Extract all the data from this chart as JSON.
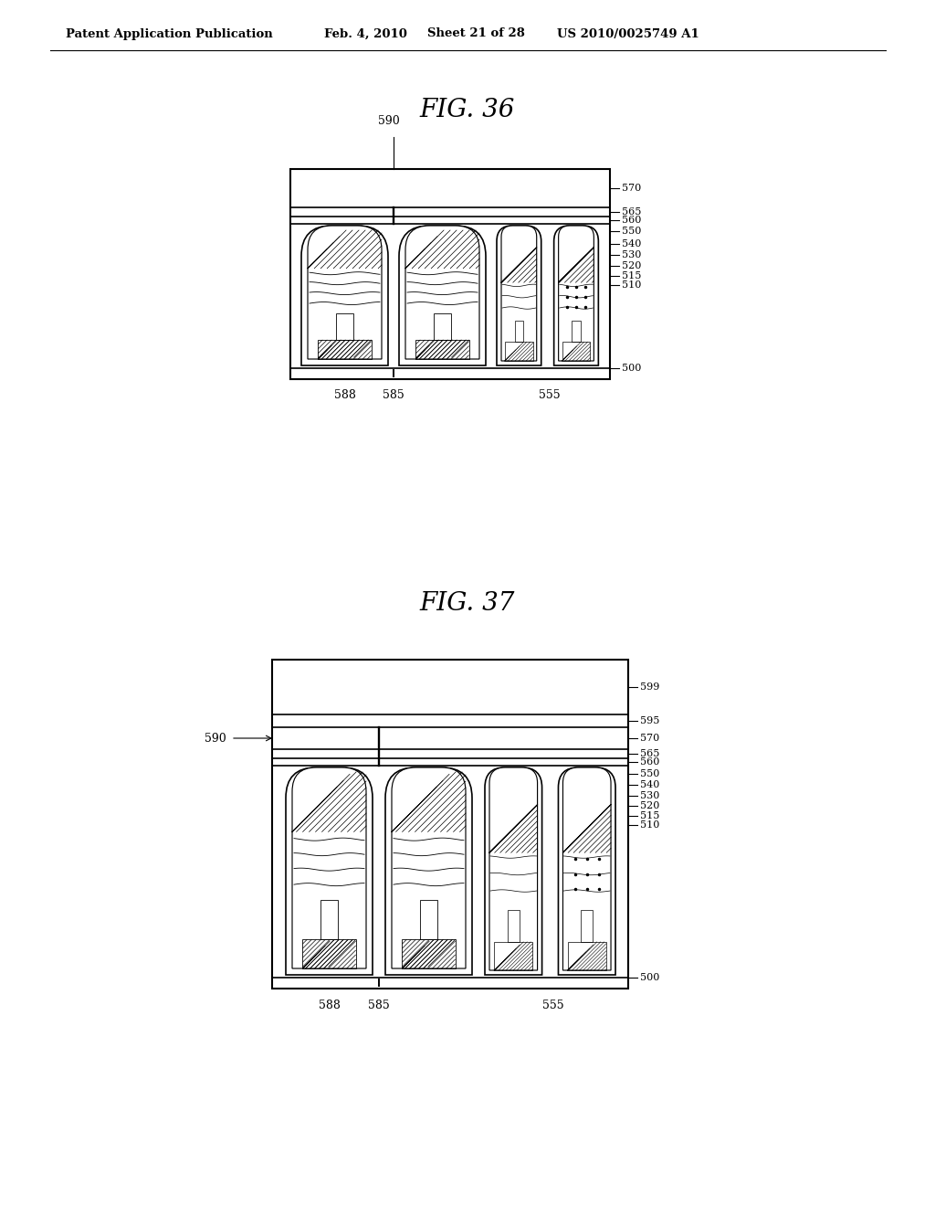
{
  "bg_color": "#ffffff",
  "header_text": "Patent Application Publication",
  "header_date": "Feb. 4, 2010",
  "header_sheet": "Sheet 21 of 28",
  "header_patent": "US 2010/0025749 A1",
  "fig1_title": "FIG. 36",
  "fig2_title": "FIG. 37",
  "line_color": "#000000",
  "lw": 1.2
}
